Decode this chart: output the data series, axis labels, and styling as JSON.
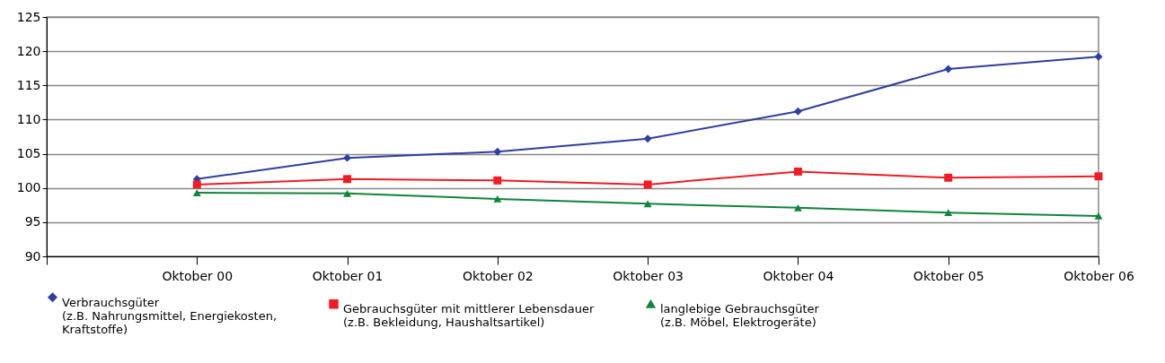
{
  "chart_data": {
    "type": "line",
    "categories": [
      null,
      "Oktober 00",
      "Oktober 01",
      "Oktober 02",
      "Oktober 03",
      "Oktober 04",
      "Oktober 05",
      "Oktober 06"
    ],
    "series": [
      {
        "name": "Verbrauchsgüter\n(z.B. Nahrungsmittel, Energiekosten,\nKraftstoffe)",
        "color": "#2e3f9e",
        "marker": "diamond",
        "values": [
          null,
          101.3,
          104.4,
          105.3,
          107.2,
          111.2,
          117.4,
          119.2
        ]
      },
      {
        "name": "Gebrauchsgüter mit mittlerer Lebensdauer\n(z.B. Bekleidung, Haushaltsartikel)",
        "color": "#ee1c25",
        "marker": "square",
        "values": [
          null,
          100.5,
          101.3,
          101.1,
          100.5,
          102.4,
          101.5,
          101.7
        ]
      },
      {
        "name": "langlebige Gebrauchsgüter\n(z.B. Möbel, Elektrogeräte)",
        "color": "#12843c",
        "marker": "triangle",
        "values": [
          null,
          99.3,
          99.2,
          98.4,
          97.7,
          97.1,
          96.4,
          95.9
        ]
      }
    ],
    "ylim": [
      90,
      125
    ],
    "yticks": [
      90,
      95,
      100,
      105,
      110,
      115,
      120,
      125
    ],
    "grid": "y",
    "legend": "bottom"
  }
}
